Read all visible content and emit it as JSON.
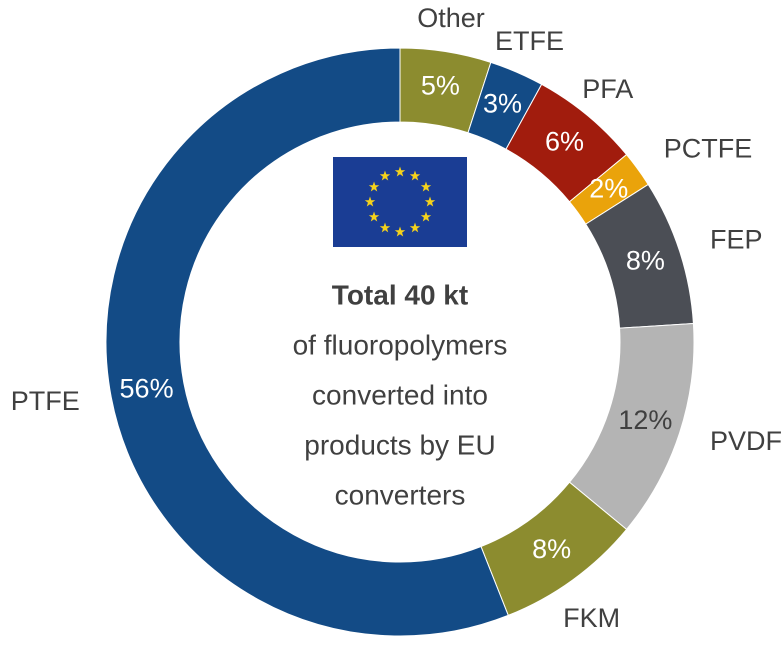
{
  "chart_data": {
    "type": "pie",
    "categories": [
      "Other",
      "ETFE",
      "PFA",
      "PCTFE",
      "FEP",
      "PVDF",
      "FKM",
      "PTFE"
    ],
    "values": [
      5,
      3,
      6,
      2,
      8,
      12,
      8,
      56
    ],
    "value_labels": [
      "5%",
      "3%",
      "6%",
      "2%",
      "8%",
      "12%",
      "8%",
      "56%"
    ],
    "colors": [
      "#8c8c2f",
      "#134b86",
      "#a11c0d",
      "#eaa30b",
      "#4b4e55",
      "#b4b4b4",
      "#8c8c2f",
      "#134b86"
    ],
    "center_title": "Total 40 kt",
    "center_text": [
      "of fluoropolymers",
      "converted into",
      "products by EU",
      "converters"
    ]
  }
}
